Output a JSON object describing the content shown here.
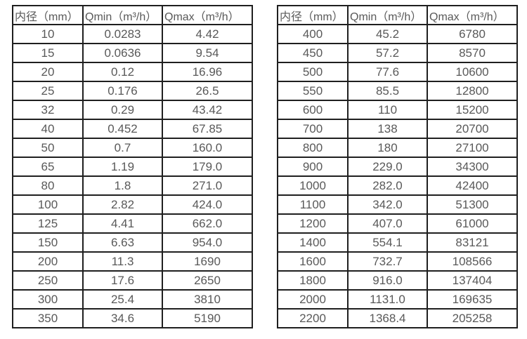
{
  "page": {
    "background": "#ffffff",
    "text_color": "#595959",
    "border_color": "#1f1f1f"
  },
  "tables": [
    {
      "name": "small-diameter-flow-table",
      "headers": [
        "内径（mm）",
        "Qmin（m³/h）",
        "Qmax（m³/h）"
      ],
      "rows": [
        [
          "10",
          "0.0283",
          "4.42"
        ],
        [
          "15",
          "0.0636",
          "9.54"
        ],
        [
          "20",
          "0.12",
          "16.96"
        ],
        [
          "25",
          "0.176",
          "26.5"
        ],
        [
          "32",
          "0.29",
          "43.42"
        ],
        [
          "40",
          "0.452",
          "67.85"
        ],
        [
          "50",
          "0.7",
          "160.0"
        ],
        [
          "65",
          "1.19",
          "179.0"
        ],
        [
          "80",
          "1.8",
          "271.0"
        ],
        [
          "100",
          "2.82",
          "424.0"
        ],
        [
          "125",
          "4.41",
          "662.0"
        ],
        [
          "150",
          "6.63",
          "954.0"
        ],
        [
          "200",
          "11.3",
          "1690"
        ],
        [
          "250",
          "17.6",
          "2650"
        ],
        [
          "300",
          "25.4",
          "3810"
        ],
        [
          "350",
          "34.6",
          "5190"
        ]
      ]
    },
    {
      "name": "large-diameter-flow-table",
      "headers": [
        "内径（mm）",
        "Qmin（m³/h）",
        "Qmax（m³/h）"
      ],
      "rows": [
        [
          "400",
          "45.2",
          "6780"
        ],
        [
          "450",
          "57.2",
          "8570"
        ],
        [
          "500",
          "77.6",
          "10600"
        ],
        [
          "550",
          "85.5",
          "12800"
        ],
        [
          "600",
          "110",
          "15200"
        ],
        [
          "700",
          "138",
          "20700"
        ],
        [
          "800",
          "180",
          "27100"
        ],
        [
          "900",
          "229.0",
          "34300"
        ],
        [
          "1000",
          "282.0",
          "42400"
        ],
        [
          "1100",
          "342.0",
          "51300"
        ],
        [
          "1200",
          "407.0",
          "61000"
        ],
        [
          "1400",
          "554.1",
          "83121"
        ],
        [
          "1600",
          "732.7",
          "108566"
        ],
        [
          "1800",
          "916.0",
          "137404"
        ],
        [
          "2000",
          "1131.0",
          "169635"
        ],
        [
          "2200",
          "1368.4",
          "205258"
        ]
      ]
    }
  ]
}
